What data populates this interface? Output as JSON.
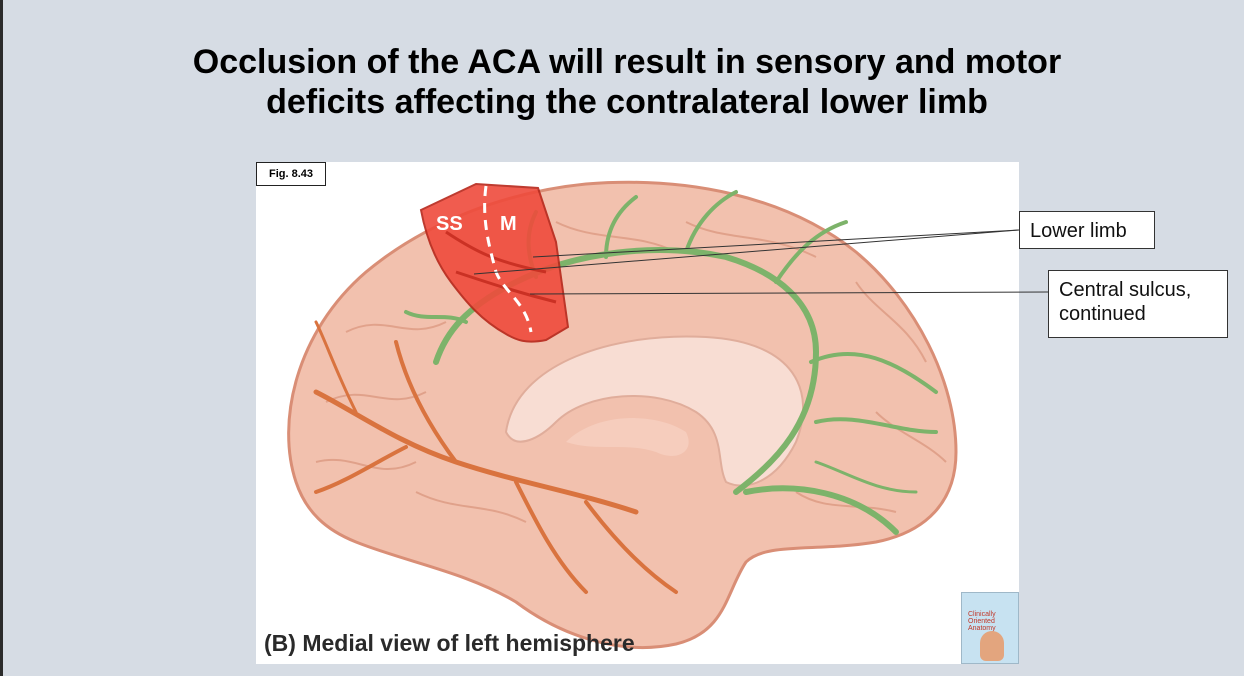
{
  "title": {
    "line1": "Occlusion of the ACA will result in sensory and motor",
    "line2": "deficits affecting the contralateral lower limb"
  },
  "figure": {
    "label": "Fig. 8.43",
    "caption": "(B) Medial view of left hemisphere",
    "region_ss": "SS",
    "region_m": "M",
    "book": {
      "title_line1": "Clinically",
      "title_line2": "Oriented",
      "title_line3": "Anatomy"
    }
  },
  "callouts": {
    "lower_limb": "Lower limb",
    "central_sulcus_line1": "Central sulcus,",
    "central_sulcus_line2": "continued"
  },
  "colors": {
    "background": "#d6dce4",
    "brain": "#f2c1ae",
    "brain_outline": "#d98e76",
    "aca_artery": "#7db36a",
    "pca_artery": "#d9733f",
    "territory": "#ef4b3c",
    "corpus_callosum": "#f8ddd3"
  },
  "icons": [
    "brain-illustration",
    "book-cover-icon"
  ]
}
